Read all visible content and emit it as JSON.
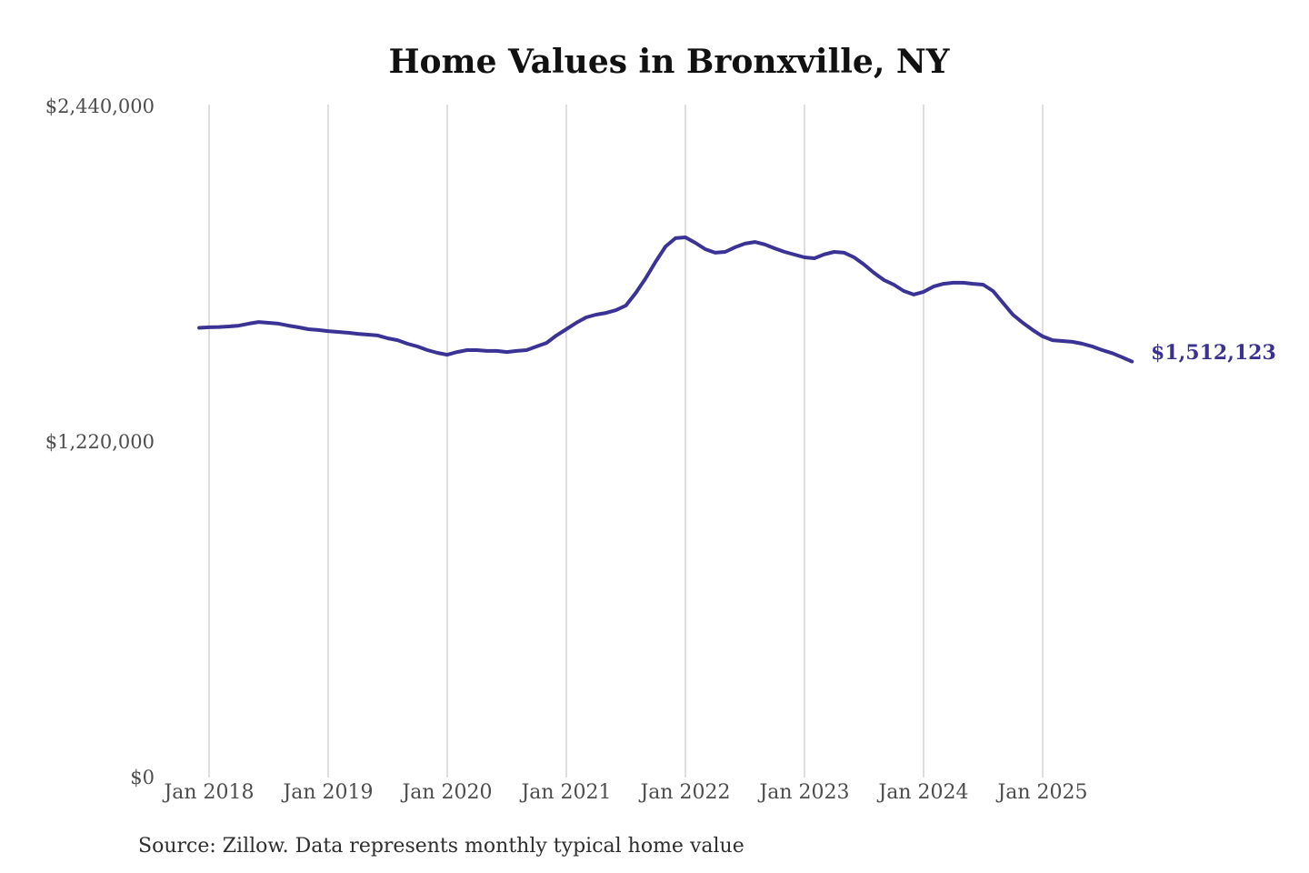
{
  "chart": {
    "title": "Home Values in Bronxville, NY",
    "end_label": "$1,512,123",
    "source": "Source: Zillow. Data represents monthly typical home value",
    "colors": {
      "line": "#3b3295",
      "end_label": "#3a3191",
      "grid": "#c9c9c9",
      "axis_text": "#4d4d4d",
      "title_text": "#111111",
      "source_text": "#2e2e2e",
      "background": "#ffffff"
    }
  },
  "chart_data": {
    "type": "line",
    "title": "Home Values in Bronxville, NY",
    "xlabel": "",
    "ylabel": "",
    "ylim": [
      0,
      2440000
    ],
    "grid": "vertical-only",
    "legend": "none",
    "y_ticks": [
      {
        "label": "$2,440,000",
        "value": 2440000
      },
      {
        "label": "$1,220,000",
        "value": 1220000
      },
      {
        "label": "$0",
        "value": 0
      }
    ],
    "x_ticks": [
      "Jan 2018",
      "Jan 2019",
      "Jan 2020",
      "Jan 2021",
      "Jan 2022",
      "Jan 2023",
      "Jan 2024",
      "Jan 2025"
    ],
    "latest_value": 1512123,
    "latest_value_label": "$1,512,123",
    "source": "Source: Zillow. Data represents monthly typical home value",
    "series": [
      {
        "name": "Monthly typical home value",
        "months": [
          "2017-12",
          "2018-01",
          "2018-02",
          "2018-03",
          "2018-04",
          "2018-05",
          "2018-06",
          "2018-07",
          "2018-08",
          "2018-09",
          "2018-10",
          "2018-11",
          "2018-12",
          "2019-01",
          "2019-02",
          "2019-03",
          "2019-04",
          "2019-05",
          "2019-06",
          "2019-07",
          "2019-08",
          "2019-09",
          "2019-10",
          "2019-11",
          "2019-12",
          "2020-01",
          "2020-02",
          "2020-03",
          "2020-04",
          "2020-05",
          "2020-06",
          "2020-07",
          "2020-08",
          "2020-09",
          "2020-10",
          "2020-11",
          "2020-12",
          "2021-01",
          "2021-02",
          "2021-03",
          "2021-04",
          "2021-05",
          "2021-06",
          "2021-07",
          "2021-08",
          "2021-09",
          "2021-10",
          "2021-11",
          "2021-12",
          "2022-01",
          "2022-02",
          "2022-03",
          "2022-04",
          "2022-05",
          "2022-06",
          "2022-07",
          "2022-08",
          "2022-09",
          "2022-10",
          "2022-11",
          "2022-12",
          "2023-01",
          "2023-02",
          "2023-03",
          "2023-04",
          "2023-05",
          "2023-06",
          "2023-07",
          "2023-08",
          "2023-09",
          "2023-10",
          "2023-11",
          "2023-12",
          "2024-01",
          "2024-02",
          "2024-03",
          "2024-04",
          "2024-05",
          "2024-06",
          "2024-07",
          "2024-08",
          "2024-09",
          "2024-10",
          "2024-11",
          "2024-12",
          "2025-01",
          "2025-02",
          "2025-03",
          "2025-04",
          "2025-05",
          "2025-06",
          "2025-07",
          "2025-08",
          "2025-09",
          "2025-10"
        ],
        "values": [
          1635000,
          1637000,
          1638000,
          1640000,
          1643000,
          1650000,
          1656000,
          1653000,
          1650000,
          1643000,
          1637000,
          1630000,
          1627000,
          1623000,
          1620000,
          1617000,
          1613000,
          1610000,
          1607000,
          1597000,
          1590000,
          1577000,
          1567000,
          1554000,
          1544000,
          1537000,
          1547000,
          1554000,
          1554000,
          1551000,
          1551000,
          1547000,
          1551000,
          1554000,
          1567000,
          1580000,
          1607000,
          1630000,
          1653000,
          1673000,
          1683000,
          1689000,
          1699000,
          1716000,
          1762000,
          1815000,
          1875000,
          1931000,
          1961000,
          1964000,
          1944000,
          1921000,
          1908000,
          1911000,
          1928000,
          1941000,
          1947000,
          1938000,
          1924000,
          1911000,
          1901000,
          1891000,
          1888000,
          1902000,
          1911000,
          1908000,
          1891000,
          1865000,
          1835000,
          1809000,
          1792000,
          1769000,
          1756000,
          1766000,
          1785000,
          1795000,
          1799000,
          1799000,
          1795000,
          1792000,
          1769000,
          1726000,
          1683000,
          1653000,
          1627000,
          1604000,
          1590000,
          1587000,
          1584000,
          1577000,
          1567000,
          1554000,
          1543000,
          1528000,
          1512123
        ]
      }
    ]
  }
}
